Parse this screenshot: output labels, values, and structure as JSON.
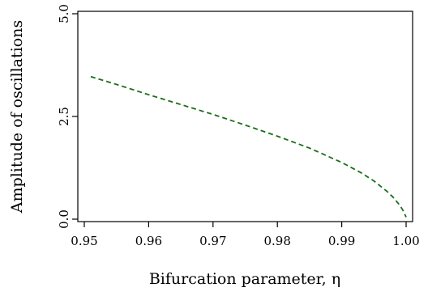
{
  "chart_data": {
    "type": "line",
    "xlabel": "Bifurcation parameter, η",
    "ylabel": "Amplitude of oscillations",
    "xlim": [
      0.95,
      1.0
    ],
    "ylim": [
      0.0,
      5.0
    ],
    "x_ticks": [
      0.95,
      0.96,
      0.97,
      0.98,
      0.99,
      1.0
    ],
    "x_tick_labels": [
      "0.95",
      "0.96",
      "0.97",
      "0.98",
      "0.99",
      "1.00"
    ],
    "y_ticks": [
      0.0,
      2.5,
      5.0
    ],
    "y_tick_labels": [
      "0.0",
      "2.5",
      "5.0"
    ],
    "grid": false,
    "series": [
      {
        "line_style": "dashed",
        "color": "#1a6e1a",
        "x": [
          0.951,
          0.955,
          0.96,
          0.965,
          0.97,
          0.975,
          0.98,
          0.985,
          0.99,
          0.993,
          0.995,
          0.997,
          0.998,
          0.999,
          0.9995,
          1.0
        ],
        "y": [
          3.47,
          3.28,
          3.03,
          2.79,
          2.55,
          2.29,
          2.02,
          1.73,
          1.38,
          1.13,
          0.93,
          0.68,
          0.53,
          0.34,
          0.22,
          0.05
        ]
      }
    ]
  }
}
